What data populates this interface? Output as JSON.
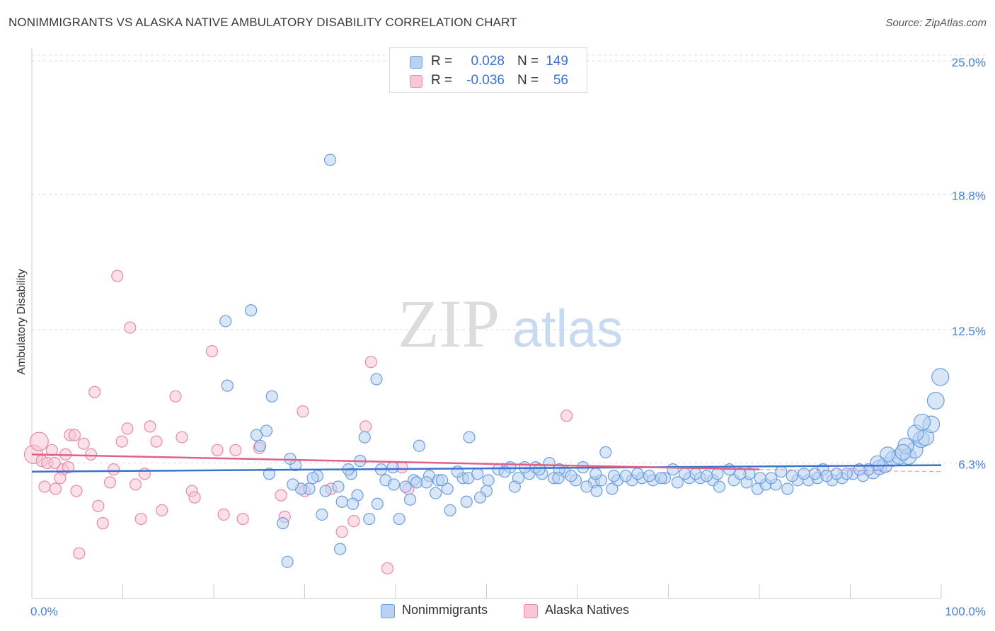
{
  "title": "NONIMMIGRANTS VS ALASKA NATIVE AMBULATORY DISABILITY CORRELATION CHART",
  "source": "Source: ZipAtlas.com",
  "watermark": {
    "zip": "ZIP",
    "atlas": "atlas"
  },
  "legend": {
    "rows": [
      {
        "r_label": "R =",
        "r_value": "0.028",
        "n_label": "N =",
        "n_value": "149"
      },
      {
        "r_label": "R =",
        "r_value": "-0.036",
        "n_label": "N =",
        "n_value": "56"
      }
    ]
  },
  "bottom_legend": [
    "Nonimmigrants",
    "Alaska Natives"
  ],
  "chart_data": {
    "type": "scatter",
    "ylabel": "Ambulatory Disability",
    "xlabel": "",
    "xlim": [
      0,
      100
    ],
    "ylim": [
      0,
      25.6
    ],
    "x_tick_labels": [
      "0.0%",
      "100.0%"
    ],
    "y_ticks": [
      6.3,
      12.5,
      18.8,
      25.0
    ],
    "y_tick_labels": [
      "6.3%",
      "12.5%",
      "18.8%",
      "25.0%"
    ],
    "grid": "horizontal dashed",
    "colors": {
      "blue": "#6a9ee0",
      "blue_fill": "#b9d2f3",
      "pink": "#e88aa8",
      "pink_fill": "#f8c6d6",
      "blue_line": "#3a72cc",
      "pink_line": "#e0608a"
    },
    "series": [
      {
        "name": "Nonimmigrants",
        "trend": {
          "x": [
            0,
            100
          ],
          "y": [
            5.9,
            6.2
          ]
        },
        "points": [
          [
            32.8,
            20.4
          ],
          [
            21.3,
            12.9
          ],
          [
            24.1,
            13.4
          ],
          [
            21.5,
            9.9
          ],
          [
            26.4,
            9.4
          ],
          [
            37.9,
            10.2
          ],
          [
            25.8,
            7.8
          ],
          [
            24.7,
            7.6
          ],
          [
            25.1,
            7.1
          ],
          [
            36.6,
            7.5
          ],
          [
            42.6,
            7.1
          ],
          [
            48.1,
            7.5
          ],
          [
            29.0,
            6.2
          ],
          [
            26.1,
            5.8
          ],
          [
            31.4,
            5.7
          ],
          [
            35.1,
            5.8
          ],
          [
            38.4,
            6.0
          ],
          [
            38.9,
            5.5
          ],
          [
            39.7,
            6.1
          ],
          [
            42.0,
            5.5
          ],
          [
            43.7,
            5.7
          ],
          [
            44.7,
            5.5
          ],
          [
            45.7,
            5.1
          ],
          [
            47.4,
            5.6
          ],
          [
            48.0,
            5.6
          ],
          [
            50.2,
            5.5
          ],
          [
            53.5,
            5.6
          ],
          [
            54.7,
            5.8
          ],
          [
            56.1,
            5.8
          ],
          [
            57.4,
            5.6
          ],
          [
            58.6,
            5.9
          ],
          [
            59.8,
            5.5
          ],
          [
            61.8,
            5.4
          ],
          [
            62.6,
            5.5
          ],
          [
            63.1,
            6.8
          ],
          [
            64.4,
            5.5
          ],
          [
            66.0,
            5.5
          ],
          [
            67.1,
            5.6
          ],
          [
            68.3,
            5.5
          ],
          [
            69.6,
            5.6
          ],
          [
            71.0,
            5.4
          ],
          [
            72.3,
            5.6
          ],
          [
            73.5,
            5.6
          ],
          [
            74.9,
            5.5
          ],
          [
            75.6,
            5.2
          ],
          [
            77.2,
            5.5
          ],
          [
            78.6,
            5.4
          ],
          [
            79.8,
            5.1
          ],
          [
            80.7,
            5.3
          ],
          [
            81.8,
            5.3
          ],
          [
            83.1,
            5.1
          ],
          [
            84.2,
            5.5
          ],
          [
            85.4,
            5.5
          ],
          [
            86.4,
            5.6
          ],
          [
            87.0,
            6.0
          ],
          [
            88.0,
            5.5
          ],
          [
            89.1,
            5.6
          ],
          [
            90.3,
            5.8
          ],
          [
            91.4,
            5.7
          ],
          [
            92.5,
            5.9
          ],
          [
            93.2,
            6.1
          ],
          [
            93.8,
            6.2
          ],
          [
            94.7,
            6.5
          ],
          [
            95.4,
            6.6
          ],
          [
            96.4,
            6.6
          ],
          [
            97.1,
            6.9
          ],
          [
            97.8,
            7.4
          ],
          [
            98.3,
            7.5
          ],
          [
            98.9,
            8.1
          ],
          [
            99.4,
            9.2
          ],
          [
            99.9,
            10.3
          ],
          [
            96.1,
            7.1
          ],
          [
            97.2,
            7.7
          ],
          [
            97.9,
            8.2
          ],
          [
            94.1,
            6.7
          ],
          [
            95.8,
            6.8
          ],
          [
            93.0,
            6.3
          ],
          [
            92.0,
            6.0
          ],
          [
            91.0,
            6.0
          ],
          [
            89.6,
            5.8
          ],
          [
            88.5,
            5.8
          ],
          [
            87.4,
            5.7
          ],
          [
            86.1,
            5.8
          ],
          [
            84.9,
            5.8
          ],
          [
            83.6,
            5.7
          ],
          [
            82.4,
            5.9
          ],
          [
            81.3,
            5.6
          ],
          [
            80.1,
            5.6
          ],
          [
            78.9,
            5.8
          ],
          [
            77.9,
            5.8
          ],
          [
            76.7,
            6.0
          ],
          [
            75.4,
            5.8
          ],
          [
            74.2,
            5.7
          ],
          [
            73.0,
            5.8
          ],
          [
            71.8,
            5.8
          ],
          [
            70.5,
            6.0
          ],
          [
            69.2,
            5.6
          ],
          [
            67.9,
            5.7
          ],
          [
            66.6,
            5.8
          ],
          [
            65.3,
            5.7
          ],
          [
            64.0,
            5.7
          ],
          [
            62.0,
            5.8
          ],
          [
            60.6,
            6.1
          ],
          [
            59.3,
            5.7
          ],
          [
            58.0,
            6.0
          ],
          [
            56.9,
            6.3
          ],
          [
            55.4,
            6.1
          ],
          [
            54.2,
            6.1
          ],
          [
            52.6,
            6.1
          ],
          [
            51.3,
            6.0
          ],
          [
            50.0,
            5.0
          ],
          [
            49.3,
            4.7
          ],
          [
            47.8,
            4.5
          ],
          [
            46.0,
            4.1
          ],
          [
            45.1,
            5.5
          ],
          [
            43.4,
            5.4
          ],
          [
            42.3,
            5.4
          ],
          [
            41.1,
            5.2
          ],
          [
            39.8,
            5.3
          ],
          [
            38.0,
            4.4
          ],
          [
            37.1,
            3.7
          ],
          [
            35.8,
            4.8
          ],
          [
            35.3,
            4.4
          ],
          [
            34.1,
            4.5
          ],
          [
            33.7,
            5.2
          ],
          [
            32.3,
            5.0
          ],
          [
            30.5,
            5.1
          ],
          [
            29.6,
            5.1
          ],
          [
            28.4,
            6.5
          ],
          [
            28.7,
            5.3
          ],
          [
            27.6,
            3.5
          ],
          [
            28.1,
            1.7
          ],
          [
            34.8,
            6.0
          ],
          [
            36.1,
            6.4
          ],
          [
            30.9,
            5.6
          ],
          [
            31.9,
            3.9
          ],
          [
            33.9,
            2.3
          ],
          [
            44.4,
            4.9
          ],
          [
            40.4,
            3.7
          ],
          [
            41.6,
            4.6
          ],
          [
            46.8,
            5.9
          ],
          [
            49.0,
            5.8
          ],
          [
            52.0,
            5.9
          ],
          [
            53.1,
            5.2
          ],
          [
            55.8,
            6.0
          ],
          [
            57.9,
            5.6
          ],
          [
            63.8,
            5.1
          ],
          [
            62.1,
            5.0
          ],
          [
            61.0,
            5.2
          ]
        ]
      },
      {
        "name": "Alaska Natives",
        "trend": {
          "x": [
            0,
            80
          ],
          "y": [
            6.7,
            6.0
          ]
        },
        "trend_dashed": {
          "x": [
            80,
            100
          ],
          "y": [
            6.0,
            5.9
          ]
        },
        "points": [
          [
            0.2,
            6.7
          ],
          [
            0.8,
            7.3
          ],
          [
            1.1,
            6.4
          ],
          [
            1.4,
            5.2
          ],
          [
            1.7,
            6.3
          ],
          [
            2.2,
            6.9
          ],
          [
            2.6,
            5.1
          ],
          [
            3.4,
            6.0
          ],
          [
            3.1,
            5.6
          ],
          [
            3.7,
            6.7
          ],
          [
            4.2,
            7.6
          ],
          [
            4.9,
            5.0
          ],
          [
            4.7,
            7.6
          ],
          [
            5.2,
            2.1
          ],
          [
            5.7,
            7.2
          ],
          [
            6.5,
            6.7
          ],
          [
            6.9,
            9.6
          ],
          [
            7.3,
            4.3
          ],
          [
            7.8,
            3.5
          ],
          [
            8.6,
            5.4
          ],
          [
            9.0,
            6.0
          ],
          [
            9.4,
            15.0
          ],
          [
            9.9,
            7.3
          ],
          [
            10.5,
            7.9
          ],
          [
            10.8,
            12.6
          ],
          [
            11.4,
            5.3
          ],
          [
            12.0,
            3.7
          ],
          [
            12.4,
            5.8
          ],
          [
            13.0,
            8.0
          ],
          [
            13.7,
            7.3
          ],
          [
            14.3,
            4.1
          ],
          [
            15.8,
            9.4
          ],
          [
            16.5,
            7.5
          ],
          [
            17.6,
            5.0
          ],
          [
            17.9,
            4.7
          ],
          [
            19.8,
            11.5
          ],
          [
            20.4,
            6.9
          ],
          [
            21.1,
            3.9
          ],
          [
            22.4,
            6.9
          ],
          [
            23.2,
            3.7
          ],
          [
            25.0,
            7.0
          ],
          [
            27.4,
            4.8
          ],
          [
            27.8,
            3.8
          ],
          [
            29.8,
            8.7
          ],
          [
            30.0,
            5.0
          ],
          [
            32.9,
            5.1
          ],
          [
            34.1,
            3.1
          ],
          [
            35.4,
            3.6
          ],
          [
            36.7,
            8.0
          ],
          [
            37.3,
            11.0
          ],
          [
            39.1,
            1.4
          ],
          [
            41.4,
            5.1
          ],
          [
            40.7,
            6.1
          ],
          [
            58.8,
            8.5
          ],
          [
            2.5,
            6.3
          ],
          [
            4.0,
            6.1
          ]
        ]
      }
    ]
  }
}
